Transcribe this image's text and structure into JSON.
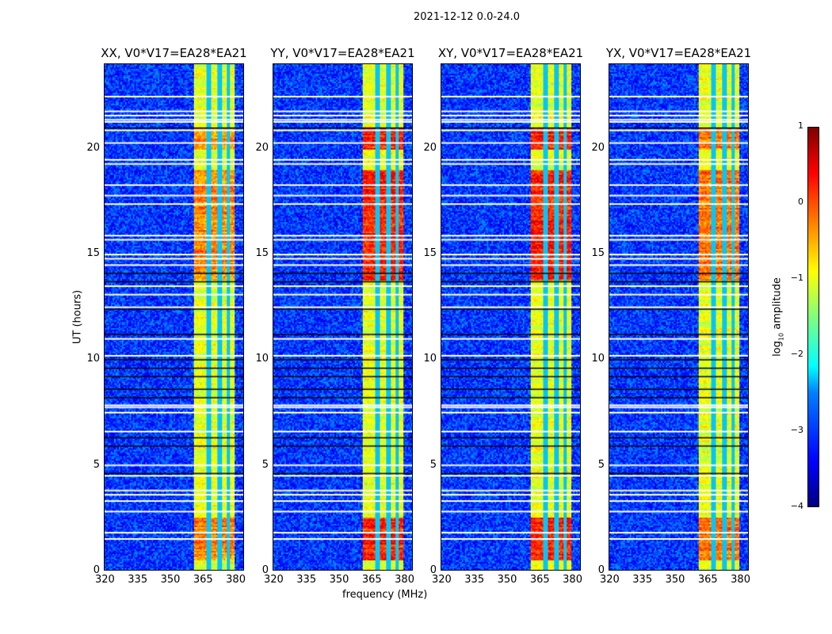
{
  "chart_data": {
    "type": "heatmap",
    "title": "2021-12-12 0.0-24.0",
    "xlabel": "frequency (MHz)",
    "ylabel": "UT (hours)",
    "xlim": [
      320,
      384.3
    ],
    "ylim": [
      0,
      24
    ],
    "xticks": [
      "320",
      "335",
      "350",
      "365",
      "380"
    ],
    "xtick_values": [
      320,
      335,
      350,
      365,
      380
    ],
    "yticks": [
      "0",
      "5",
      "10",
      "15",
      "20"
    ],
    "ytick_values": [
      0,
      5,
      10,
      15,
      20
    ],
    "panels": [
      {
        "title": "XX, V0*V17=EA28*EA21",
        "peak": 0.3
      },
      {
        "title": "YY, V0*V17=EA28*EA21",
        "peak": 0.8
      },
      {
        "title": "XY, V0*V17=EA28*EA21",
        "peak": 0.8
      },
      {
        "title": "YX, V0*V17=EA28*EA21",
        "peak": 0.4
      }
    ],
    "signal_band_mhz": [
      361,
      380
    ],
    "band_gap_channels_mhz": [
      368,
      373,
      377
    ],
    "background_log_amp": -3.1,
    "band_log_amp": -1.0,
    "high_activity_hours": [
      [
        0.5,
        2.5
      ],
      [
        13.8,
        19.0
      ],
      [
        20.0,
        21.0
      ]
    ],
    "flagged_white_hours": [
      1.5,
      1.8,
      2.8,
      3.3,
      3.6,
      3.8,
      4.5,
      5.0,
      6.6,
      7.5,
      7.75,
      7.85,
      10.2,
      11.0,
      12.5,
      13.1,
      13.5,
      14.5,
      14.8,
      15.0,
      15.7,
      15.9,
      17.4,
      17.8,
      18.3,
      19.3,
      19.5,
      20.3,
      20.9,
      21.3,
      21.4,
      21.6,
      21.8,
      22.5
    ],
    "flagged_black_hours": [
      4.6,
      5.9,
      6.3,
      8.2,
      8.6,
      9.2,
      9.6,
      10.0,
      11.2,
      12.4,
      13.7,
      14.1,
      21.0
    ],
    "colorbar": {
      "label": "amplitude",
      "label_prefix": "log",
      "label_sub": "10",
      "range": [
        -4,
        1
      ],
      "ticks": [
        "1",
        "0",
        "−1",
        "−2",
        "−3",
        "−4"
      ],
      "tick_values": [
        1,
        0,
        -1,
        -2,
        -3,
        -4
      ],
      "colormap": "jet"
    }
  }
}
